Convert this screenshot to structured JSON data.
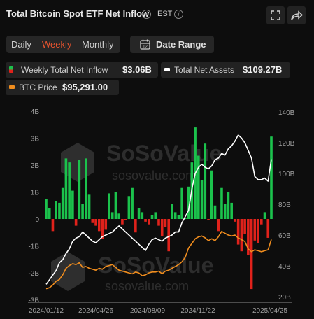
{
  "header": {
    "title": "Total Bitcoin Spot ETF Net Inflow",
    "timezone": "EST"
  },
  "tabs": [
    {
      "label": "Daily",
      "active": false
    },
    {
      "label": "Weekly",
      "active": true
    },
    {
      "label": "Monthly",
      "active": false
    }
  ],
  "date_range": {
    "label": "Date Range"
  },
  "legend": {
    "inflow": {
      "label": "Weekly Total Net Inflow",
      "value": "$3.06B"
    },
    "assets": {
      "label": "Total Net Assets",
      "value": "$109.27B"
    },
    "price": {
      "label": "BTC Price",
      "value": "$95,291.00"
    }
  },
  "watermark": {
    "brand": "SoSoValue",
    "site": "sosovalue.com"
  },
  "colors": {
    "positive": "#1bc24c",
    "negative": "#e0221b",
    "assets": "#ffffff",
    "price": "#f08d1e",
    "accent": "#e8542f"
  },
  "chart_data": {
    "type": "bar",
    "x_tick_labels": [
      "2024/01/12",
      "2024/04/26",
      "2024/08/09",
      "2024/11/22",
      "2025/04/25"
    ],
    "y_left_ticks": [
      "4B",
      "3B",
      "2B",
      "1B",
      "0",
      "-1B",
      "-2B",
      "-3B"
    ],
    "y_left_range": [
      -3,
      4
    ],
    "y_right_ticks": [
      "140B",
      "120B",
      "100B",
      "80B",
      "60B",
      "40B",
      "20B"
    ],
    "y_right_range": [
      20,
      140
    ],
    "series": [
      {
        "name": "Weekly Total Net Inflow",
        "type": "bar",
        "unit": "B",
        "values": [
          0.75,
          0.4,
          -0.45,
          0.65,
          0.6,
          1.15,
          2.25,
          2.1,
          1.05,
          -0.25,
          2.2,
          0.55,
          2.25,
          0.9,
          -0.15,
          -0.25,
          -0.45,
          -0.75,
          -0.4,
          0.95,
          0.25,
          1.0,
          0.2,
          -0.2,
          -0.05,
          0.85,
          1.15,
          -0.5,
          0.4,
          0.25,
          -0.1,
          -0.2,
          0.15,
          0.25,
          -0.25,
          -0.65,
          -0.3,
          -1.2,
          0.55,
          0.25,
          0.15,
          1.15,
          0.05,
          1.2,
          2.1,
          3.4,
          2.35,
          1.45,
          2.8,
          -0.05,
          1.8,
          0.5,
          -0.45,
          1.15,
          0.55,
          1.0,
          0.6,
          -0.1,
          -0.95,
          -1.2,
          -0.55,
          -1.35,
          -2.6,
          -0.8,
          -0.9,
          -0.2,
          0.25,
          -0.7,
          3.06
        ]
      },
      {
        "name": "Total Net Assets",
        "type": "line",
        "axis": "right",
        "unit": "B",
        "values": [
          28,
          31,
          34,
          37,
          42,
          44,
          48,
          51,
          56,
          58,
          59,
          62,
          60,
          58,
          56,
          55,
          57,
          59,
          60,
          61,
          62,
          64,
          66,
          64,
          62,
          60,
          58,
          56,
          54,
          52,
          50,
          54,
          57,
          58,
          57,
          56,
          58,
          59,
          60,
          62,
          62,
          68,
          72,
          76,
          90,
          100,
          104,
          106,
          104,
          103,
          105,
          109,
          110,
          113,
          112,
          116,
          118,
          121,
          125,
          123,
          120,
          115,
          110,
          98,
          96,
          96,
          97,
          95,
          109.27
        ]
      },
      {
        "name": "BTC Price",
        "type": "line",
        "axis": "right",
        "unit": "USD",
        "values": [
          42000,
          43000,
          46000,
          50000,
          52000,
          57000,
          64000,
          67000,
          69000,
          68000,
          70000,
          65000,
          66000,
          64000,
          63000,
          62000,
          64000,
          63000,
          66000,
          67000,
          68000,
          65000,
          62000,
          61000,
          60000,
          59000,
          58000,
          60000,
          59000,
          56000,
          57000,
          59000,
          60000,
          60000,
          61000,
          58000,
          61000,
          62000,
          64000,
          66000,
          68000,
          71000,
          76000,
          86000,
          91000,
          96000,
          98000,
          99000,
          97000,
          94000,
          96000,
          94000,
          98000,
          104000,
          102000,
          100000,
          99000,
          100000,
          97000,
          95000,
          93000,
          85000,
          82000,
          84000,
          83000,
          82000,
          83000,
          84000,
          95291
        ]
      }
    ]
  }
}
